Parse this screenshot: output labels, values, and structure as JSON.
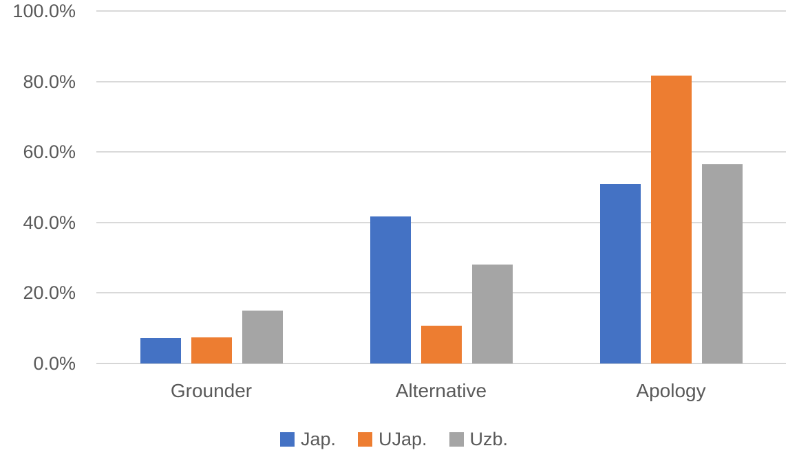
{
  "chart_data": {
    "type": "bar",
    "categories": [
      "Grounder",
      "Alternative",
      "Apology"
    ],
    "series": [
      {
        "name": "Jap.",
        "color": "#4472C4",
        "values": [
          7.3,
          41.8,
          50.8
        ]
      },
      {
        "name": "UJap.",
        "color": "#ED7D31",
        "values": [
          7.4,
          10.8,
          81.7
        ]
      },
      {
        "name": "Uzb.",
        "color": "#A5A5A5",
        "values": [
          15.0,
          28.1,
          56.5
        ]
      }
    ],
    "ylim": [
      0,
      100
    ],
    "yticks": [
      0,
      20,
      40,
      60,
      80,
      100
    ],
    "ytick_labels": [
      "0.0%",
      "20.0%",
      "40.0%",
      "60.0%",
      "80.0%",
      "100.0%"
    ],
    "grid": true,
    "legend_position": "bottom"
  },
  "style": {
    "background": "#FFFFFF",
    "text_color": "#595959",
    "gridline_color": "#D9D9D9",
    "axis_line_color": "#D6D6D6"
  }
}
